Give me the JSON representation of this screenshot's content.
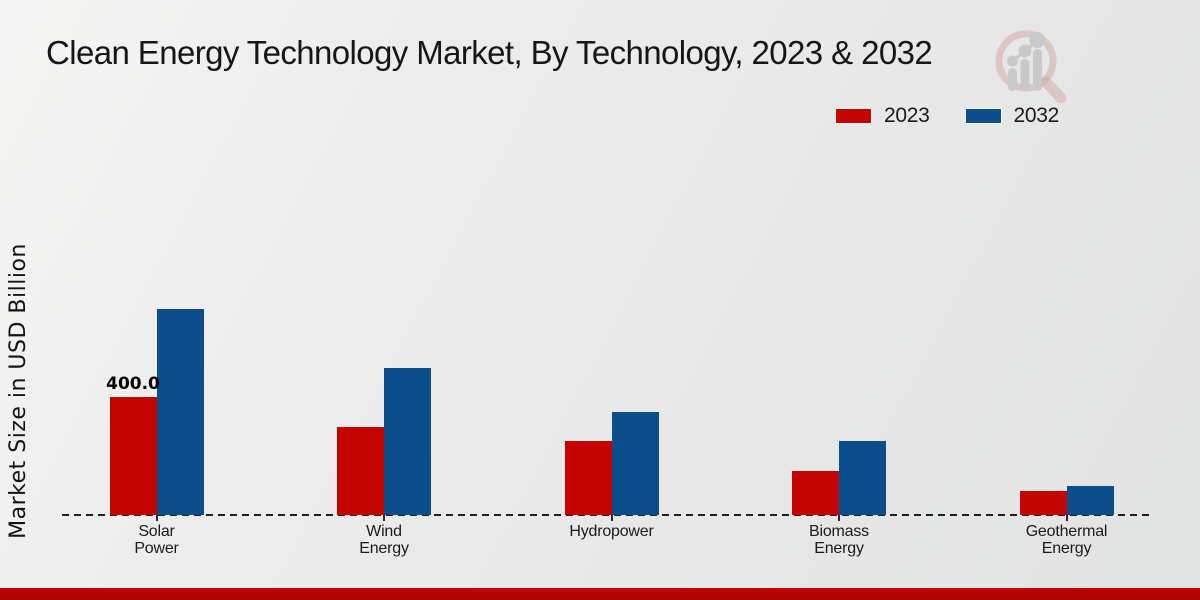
{
  "page": {
    "footer_bar_color": "#c00505"
  },
  "chart_data": {
    "type": "bar",
    "title": "Clean Energy Technology Market, By Technology, 2023 & 2032",
    "ylabel": "Market Size in USD Billion",
    "xlabel": "",
    "unit": "USD Billion",
    "categories": [
      "Solar Power",
      "Wind Energy",
      "Hydropower",
      "Biomass Energy",
      "Geothermal Energy"
    ],
    "category_label_lines": [
      [
        "Solar",
        "Power"
      ],
      [
        "Wind",
        "Energy"
      ],
      [
        "Hydropower"
      ],
      [
        "Biomass",
        "Energy"
      ],
      [
        "Geothermal",
        "Energy"
      ]
    ],
    "series": [
      {
        "name": "2023",
        "color": "#c40303",
        "values": [
          400,
          300,
          250,
          150,
          80
        ]
      },
      {
        "name": "2032",
        "color": "#0c4d8c",
        "values": [
          700,
          500,
          350,
          250,
          100
        ]
      }
    ],
    "bar_labels": [
      {
        "series_index": 0,
        "category_index": 0,
        "text": "400.0"
      }
    ],
    "ylim": [
      0,
      760
    ],
    "grid": false,
    "axis_style": "dashed-baseline",
    "legend_position": "top-right"
  },
  "watermark": {
    "name": "market-research-magnifier-logo"
  }
}
